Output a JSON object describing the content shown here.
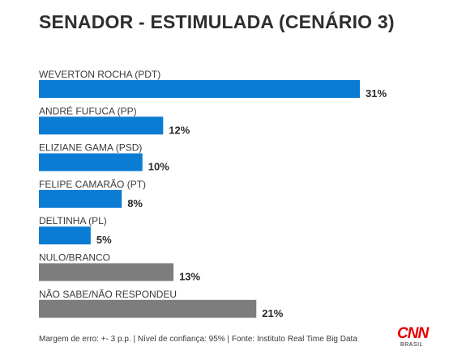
{
  "chart_data": {
    "type": "bar",
    "orientation": "horizontal",
    "title": "SENADOR - ESTIMULADA (CENÁRIO 3)",
    "categories": [
      "WEVERTON ROCHA (PDT)",
      "ANDRÉ FUFUCA (PP)",
      "ELIZIANE GAMA (PSD)",
      "FELIPE CAMARÃO (PT)",
      "DELTINHA (PL)",
      "NULO/BRANCO",
      "NÃO SABE/NÃO RESPONDEU"
    ],
    "values": [
      31,
      12,
      10,
      8,
      5,
      13,
      21
    ],
    "value_labels": [
      "31%",
      "12%",
      "10%",
      "8%",
      "5%",
      "13%",
      "21%"
    ],
    "colors": [
      "#0a7cd4",
      "#0a7cd4",
      "#0a7cd4",
      "#0a7cd4",
      "#0a7cd4",
      "#7d7d7d",
      "#7d7d7d"
    ],
    "xlim": [
      0,
      31
    ],
    "grid": false,
    "legend": "none"
  },
  "footer": "Margem de erro: +- 3 p.p. | Nível de confiança: 95% | Fonte: Instituto Real Time Big Data",
  "logo": {
    "main": "CNN",
    "sub": "BRASIL"
  }
}
